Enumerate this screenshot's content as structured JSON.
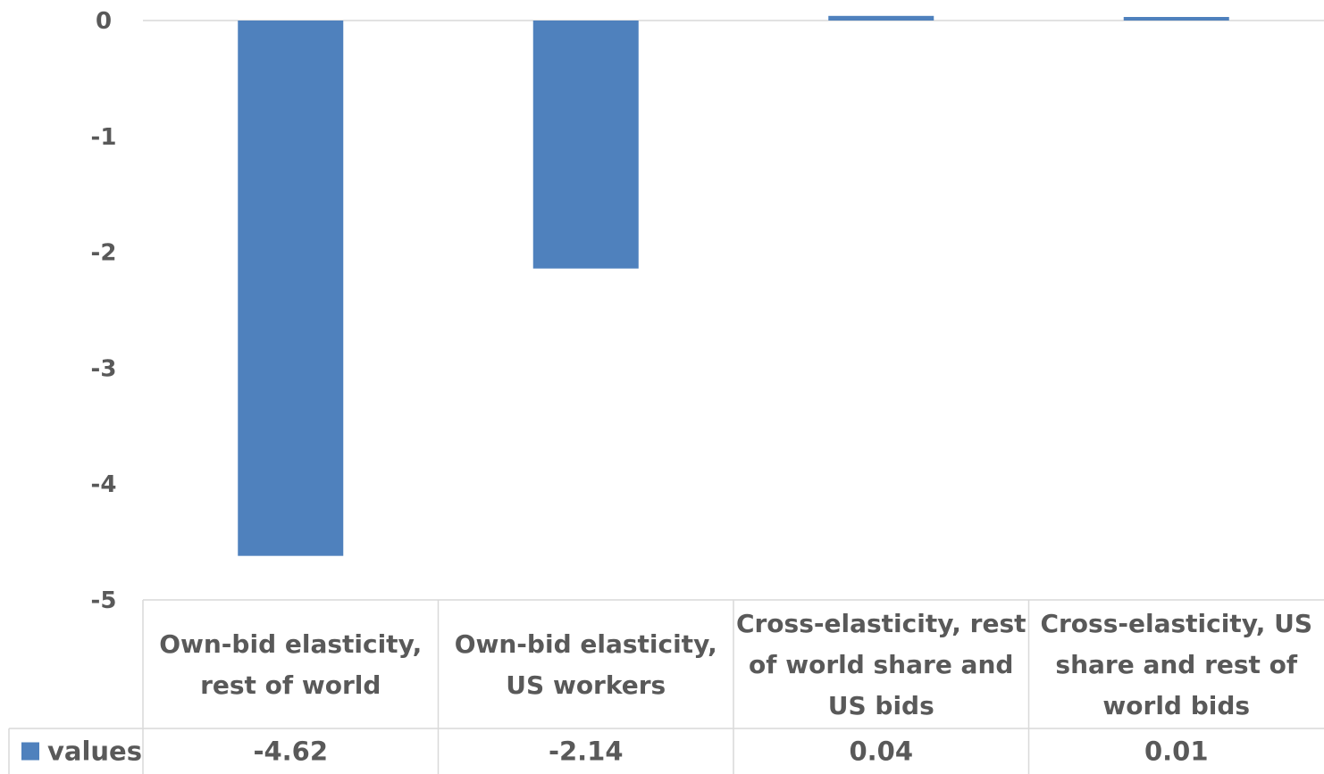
{
  "chart_data": {
    "type": "bar",
    "categories": [
      [
        "Own-bid elasticity,",
        "rest of world"
      ],
      [
        "Own-bid elasticity,",
        "US workers"
      ],
      [
        "Cross-elasticity, rest",
        "of world share and",
        "US bids"
      ],
      [
        "Cross-elasticity, US",
        "share and rest of",
        "world bids"
      ]
    ],
    "series": [
      {
        "name": "values",
        "values": [
          -4.62,
          -2.14,
          0.04,
          0.01
        ],
        "labels": [
          "-4.62",
          "-2.14",
          "0.04",
          "0.01"
        ],
        "color": "#4f81bd"
      }
    ],
    "ylim": [
      -5,
      0
    ],
    "yticks": [
      "0",
      "-1",
      "-2",
      "-3",
      "-4",
      "-5"
    ],
    "grid": false,
    "legend": "data-table",
    "table_border_color": "#d9d9d9",
    "text_color": "#595959"
  }
}
